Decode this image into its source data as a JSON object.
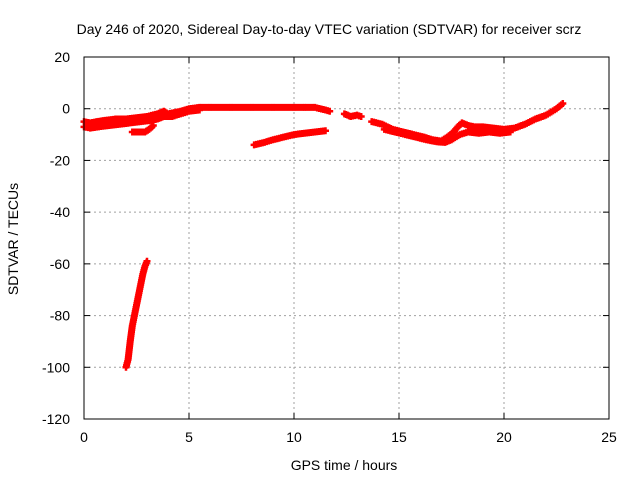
{
  "chart_data": {
    "type": "scatter",
    "title": "Day 246 of 2020, Sidereal Day-to-day VTEC variation (SDTVAR) for receiver scrz",
    "xlabel": "GPS time / hours",
    "ylabel": "SDTVAR / TECUs",
    "xlim": [
      0,
      25
    ],
    "ylim": [
      -120,
      20
    ],
    "xticks": [
      0,
      5,
      10,
      15,
      20,
      25
    ],
    "yticks": [
      20,
      0,
      -20,
      -40,
      -60,
      -80,
      -100,
      -120
    ],
    "grid": true,
    "legend": "none",
    "marker": "plus",
    "color": "#ff0000",
    "series": [
      {
        "points": [
          [
            0.0,
            -5
          ],
          [
            0.3,
            -5.5
          ],
          [
            0.6,
            -5
          ],
          [
            1.0,
            -4.5
          ],
          [
            1.5,
            -4
          ],
          [
            2.0,
            -4
          ],
          [
            2.5,
            -3.5
          ],
          [
            3.0,
            -3
          ],
          [
            3.5,
            -2
          ],
          [
            3.8,
            -1
          ],
          [
            4.0,
            -2
          ],
          [
            4.3,
            -1.5
          ],
          [
            4.6,
            -1
          ],
          [
            5.0,
            0
          ],
          [
            5.5,
            0.5
          ],
          [
            6.0,
            0.5
          ],
          [
            7.0,
            0.5
          ],
          [
            8.0,
            0.5
          ],
          [
            9.0,
            0.5
          ],
          [
            10.0,
            0.5
          ],
          [
            10.5,
            0.5
          ],
          [
            11.0,
            0.5
          ],
          [
            11.5,
            -0.5
          ],
          [
            11.7,
            -1
          ]
        ]
      },
      {
        "points": [
          [
            0.0,
            -7
          ],
          [
            0.3,
            -7.5
          ],
          [
            0.7,
            -7
          ],
          [
            1.2,
            -6.5
          ],
          [
            1.7,
            -6
          ],
          [
            2.2,
            -5.5
          ],
          [
            2.7,
            -5
          ],
          [
            3.2,
            -4.5
          ],
          [
            3.5,
            -4
          ],
          [
            3.8,
            -3
          ],
          [
            4.2,
            -3
          ],
          [
            4.6,
            -2
          ],
          [
            5.0,
            -1
          ],
          [
            5.5,
            -0.5
          ]
        ]
      },
      {
        "points": [
          [
            2.3,
            -9
          ],
          [
            2.6,
            -9
          ],
          [
            2.9,
            -9
          ],
          [
            3.1,
            -8
          ],
          [
            3.3,
            -6.5
          ]
        ]
      },
      {
        "points": [
          [
            8.1,
            -14
          ],
          [
            8.6,
            -13
          ],
          [
            9.0,
            -12
          ],
          [
            9.5,
            -11
          ],
          [
            10.0,
            -10
          ],
          [
            10.5,
            -9.5
          ],
          [
            11.0,
            -9
          ],
          [
            11.5,
            -8.5
          ]
        ]
      },
      {
        "points": [
          [
            12.4,
            -2
          ],
          [
            12.7,
            -3
          ],
          [
            13.0,
            -2.5
          ],
          [
            13.2,
            -3
          ]
        ]
      },
      {
        "points": [
          [
            13.7,
            -5
          ],
          [
            14.2,
            -6
          ],
          [
            14.7,
            -8
          ],
          [
            15.2,
            -9
          ],
          [
            15.7,
            -10
          ],
          [
            16.2,
            -11
          ],
          [
            16.6,
            -12
          ],
          [
            17.0,
            -12.5
          ],
          [
            17.3,
            -11
          ],
          [
            17.6,
            -9
          ],
          [
            17.8,
            -7
          ],
          [
            18.0,
            -5.5
          ],
          [
            18.3,
            -6.5
          ],
          [
            18.6,
            -7
          ],
          [
            19.0,
            -7
          ],
          [
            19.5,
            -7.5
          ],
          [
            20.0,
            -8
          ],
          [
            20.5,
            -7.5
          ],
          [
            21.0,
            -6
          ],
          [
            21.5,
            -4
          ],
          [
            22.0,
            -2.5
          ],
          [
            22.5,
            0
          ],
          [
            22.8,
            2
          ]
        ]
      },
      {
        "points": [
          [
            14.3,
            -8
          ],
          [
            14.8,
            -9
          ],
          [
            15.3,
            -10
          ],
          [
            15.8,
            -11
          ],
          [
            16.3,
            -12
          ],
          [
            16.8,
            -12.8
          ],
          [
            17.2,
            -13
          ],
          [
            17.5,
            -12
          ],
          [
            17.9,
            -10
          ],
          [
            18.3,
            -9
          ],
          [
            18.8,
            -9.5
          ],
          [
            19.3,
            -9
          ],
          [
            19.8,
            -9.5
          ],
          [
            20.3,
            -9
          ]
        ]
      },
      {
        "points": [
          [
            2.0,
            -100
          ],
          [
            2.1,
            -97
          ],
          [
            2.2,
            -90
          ],
          [
            2.3,
            -84
          ],
          [
            2.4,
            -80
          ],
          [
            2.5,
            -76
          ],
          [
            2.6,
            -72
          ],
          [
            2.7,
            -68
          ],
          [
            2.8,
            -64
          ],
          [
            2.9,
            -61
          ],
          [
            3.0,
            -59
          ]
        ]
      }
    ]
  }
}
